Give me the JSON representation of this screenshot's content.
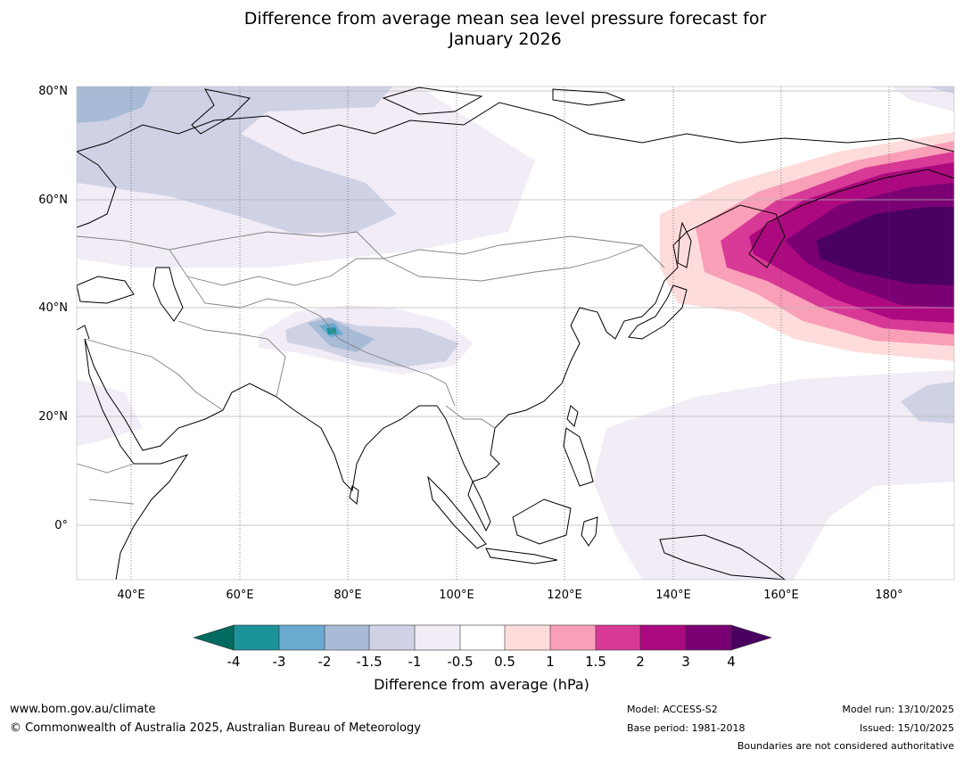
{
  "title": {
    "line1": "Difference from average mean sea level pressure forecast for",
    "line2": "January 2026"
  },
  "axes": {
    "lat_labels": [
      "80°N",
      "60°N",
      "40°N",
      "20°N",
      "0°"
    ],
    "lon_labels": [
      "40°E",
      "60°E",
      "80°E",
      "100°E",
      "120°E",
      "140°E",
      "160°E",
      "180°"
    ]
  },
  "colorbar": {
    "title": "Difference from average (hPa)",
    "ticks": [
      "-4",
      "-3",
      "-2",
      "-1.5",
      "-1",
      "-0.5",
      "0.5",
      "1",
      "1.5",
      "2",
      "3",
      "4"
    ],
    "colors": [
      "#006b5e",
      "#1c9299",
      "#6aa9d0",
      "#a7bbd6",
      "#cfd1e5",
      "#f1ecf5",
      "#ffffff",
      "#ffdcdc",
      "#f99fb8",
      "#d83996",
      "#ac0980",
      "#7b0074",
      "#490060"
    ]
  },
  "footer": {
    "url": "www.bom.gov.au/climate",
    "copyright": "© Commonwealth of Australia 2025, Australian Bureau of Meteorology",
    "model": "Model: ACCESS-S2",
    "base_period": "Base period: 1981-2018",
    "model_run": "Model run: 13/10/2025",
    "issued": "Issued: 15/10/2025",
    "disclaimer": "Boundaries are not considered authoritative"
  }
}
